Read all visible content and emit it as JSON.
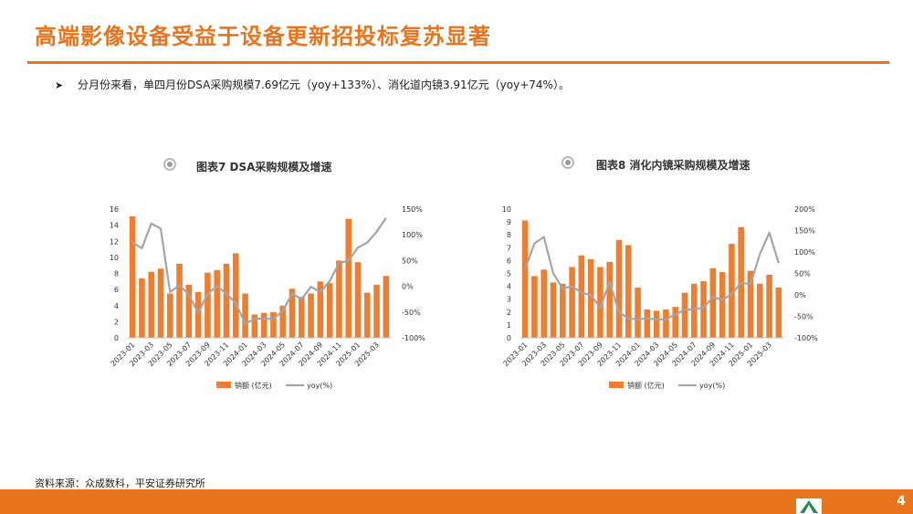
{
  "slide": {
    "title": "高端影像设备受益于设备更新招投标复苏显著",
    "bullet": "分月份来看，单四月份DSA采购规模7.69亿元（yoy+133%）、消化道内镜3.91亿元（yoy+74%）。",
    "source": "资料来源：众成数科，平安证券研究所",
    "page_number": "4"
  },
  "colors": {
    "accent": "#e8741e",
    "bar": "#ed7d31",
    "line": "#a5a5a5"
  },
  "chart_data": [
    {
      "type": "bar",
      "title": "图表7 DSA采购规模及增速",
      "categories": [
        "2023-01",
        "2023-02",
        "2023-03",
        "2023-04",
        "2023-05",
        "2023-06",
        "2023-07",
        "2023-08",
        "2023-09",
        "2023-10",
        "2023-11",
        "2023-12",
        "2024-01",
        "2024-02",
        "2024-03",
        "2024-04",
        "2024-05",
        "2024-06",
        "2024-07",
        "2024-08",
        "2024-09",
        "2024-10",
        "2024-11",
        "2024-12",
        "2025-01",
        "2025-02",
        "2025-03",
        "2025-04"
      ],
      "tick_labels": [
        "2023-01",
        "2023-03",
        "2023-05",
        "2023-07",
        "2023-09",
        "2023-11",
        "2024-01",
        "2024-03",
        "2024-05",
        "2024-07",
        "2024-09",
        "2024-11",
        "2025-01",
        "2025-03"
      ],
      "series": [
        {
          "name": "销额 (亿元)",
          "axis": "left",
          "values": [
            15.1,
            7.4,
            8.2,
            8.6,
            5.5,
            9.2,
            6.6,
            5.7,
            8.1,
            8.4,
            9.2,
            10.5,
            5.5,
            2.9,
            3.1,
            3.2,
            4.0,
            6.1,
            5.1,
            5.5,
            7.0,
            6.8,
            9.6,
            14.8,
            9.4,
            5.6,
            6.6,
            7.69
          ]
        },
        {
          "name": "yoy(%)",
          "axis": "right",
          "values": [
            85,
            74,
            122,
            112,
            -11,
            2,
            -16,
            -52,
            -14,
            0,
            -14,
            -33,
            -73,
            -63,
            -63,
            -63,
            -48,
            -14,
            -25,
            -1,
            -11,
            10,
            45,
            50,
            75,
            85,
            106,
            133
          ]
        }
      ],
      "ylim_left": [
        0,
        16
      ],
      "yticks_left": [
        "0",
        "2",
        "4",
        "6",
        "8",
        "10",
        "12",
        "14",
        "16"
      ],
      "ylim_right": [
        -100,
        150
      ],
      "yticks_right": [
        "-100%",
        "-50%",
        "0%",
        "50%",
        "100%",
        "150%"
      ],
      "legend_position": "bottom"
    },
    {
      "type": "bar",
      "title": "图表8 消化内镜采购规模及增速",
      "categories": [
        "2023-01",
        "2023-02",
        "2023-03",
        "2023-04",
        "2023-05",
        "2023-06",
        "2023-07",
        "2023-08",
        "2023-09",
        "2023-10",
        "2023-11",
        "2023-12",
        "2024-01",
        "2024-02",
        "2024-03",
        "2024-04",
        "2024-05",
        "2024-06",
        "2024-07",
        "2024-08",
        "2024-09",
        "2024-10",
        "2024-11",
        "2024-12",
        "2025-01",
        "2025-02",
        "2025-03",
        "2025-04"
      ],
      "tick_labels": [
        "2023-01",
        "2023-03",
        "2023-05",
        "2023-07",
        "2023-09",
        "2023-11",
        "2024-01",
        "2024-03",
        "2024-05",
        "2024-07",
        "2024-09",
        "2024-11",
        "2025-01",
        "2025-03"
      ],
      "series": [
        {
          "name": "销额 (亿元)",
          "axis": "left",
          "values": [
            9.1,
            4.8,
            5.3,
            4.3,
            4.2,
            5.5,
            6.4,
            6.1,
            5.5,
            5.9,
            7.6,
            7.2,
            3.9,
            2.2,
            2.1,
            2.2,
            2.4,
            3.5,
            4.2,
            4.4,
            5.4,
            5.1,
            7.3,
            8.6,
            5.2,
            4.2,
            4.9,
            3.91
          ]
        },
        {
          "name": "yoy(%)",
          "axis": "right",
          "values": [
            60,
            120,
            135,
            50,
            15,
            20,
            5,
            0,
            -30,
            30,
            -40,
            -55,
            -57,
            -55,
            -57,
            -57,
            -45,
            -35,
            -33,
            -30,
            -5,
            -12,
            2,
            28,
            25,
            95,
            145,
            74
          ]
        }
      ],
      "ylim_left": [
        0,
        10
      ],
      "yticks_left": [
        "0",
        "1",
        "2",
        "3",
        "4",
        "5",
        "6",
        "7",
        "8",
        "9",
        "10"
      ],
      "ylim_right": [
        -100,
        200
      ],
      "yticks_right": [
        "-100%",
        "-50%",
        "0%",
        "50%",
        "100%",
        "150%",
        "200%"
      ],
      "legend_position": "bottom"
    }
  ]
}
